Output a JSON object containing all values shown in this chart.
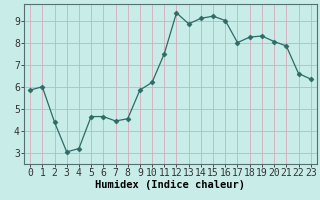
{
  "x": [
    0,
    1,
    2,
    3,
    4,
    5,
    6,
    7,
    8,
    9,
    10,
    11,
    12,
    13,
    14,
    15,
    16,
    17,
    18,
    19,
    20,
    21,
    22,
    23
  ],
  "y": [
    5.85,
    6.0,
    4.4,
    3.05,
    3.2,
    4.65,
    4.65,
    4.45,
    4.55,
    5.85,
    6.2,
    7.5,
    9.35,
    8.85,
    9.1,
    9.2,
    9.0,
    8.0,
    8.25,
    8.3,
    8.05,
    7.85,
    6.6,
    6.35
  ],
  "line_color": "#2d6b65",
  "marker": "D",
  "marker_size": 2.5,
  "bg_color": "#c8ece8",
  "grid_color": "#daaaba",
  "bottom_bar_color": "#4a6060",
  "xlabel": "Humidex (Indice chaleur)",
  "xlabel_fontsize": 7.5,
  "tick_fontsize": 7,
  "xlim": [
    -0.5,
    23.5
  ],
  "ylim": [
    2.5,
    9.75
  ],
  "yticks": [
    3,
    4,
    5,
    6,
    7,
    8,
    9
  ],
  "xticks": [
    0,
    1,
    2,
    3,
    4,
    5,
    6,
    7,
    8,
    9,
    10,
    11,
    12,
    13,
    14,
    15,
    16,
    17,
    18,
    19,
    20,
    21,
    22,
    23
  ]
}
